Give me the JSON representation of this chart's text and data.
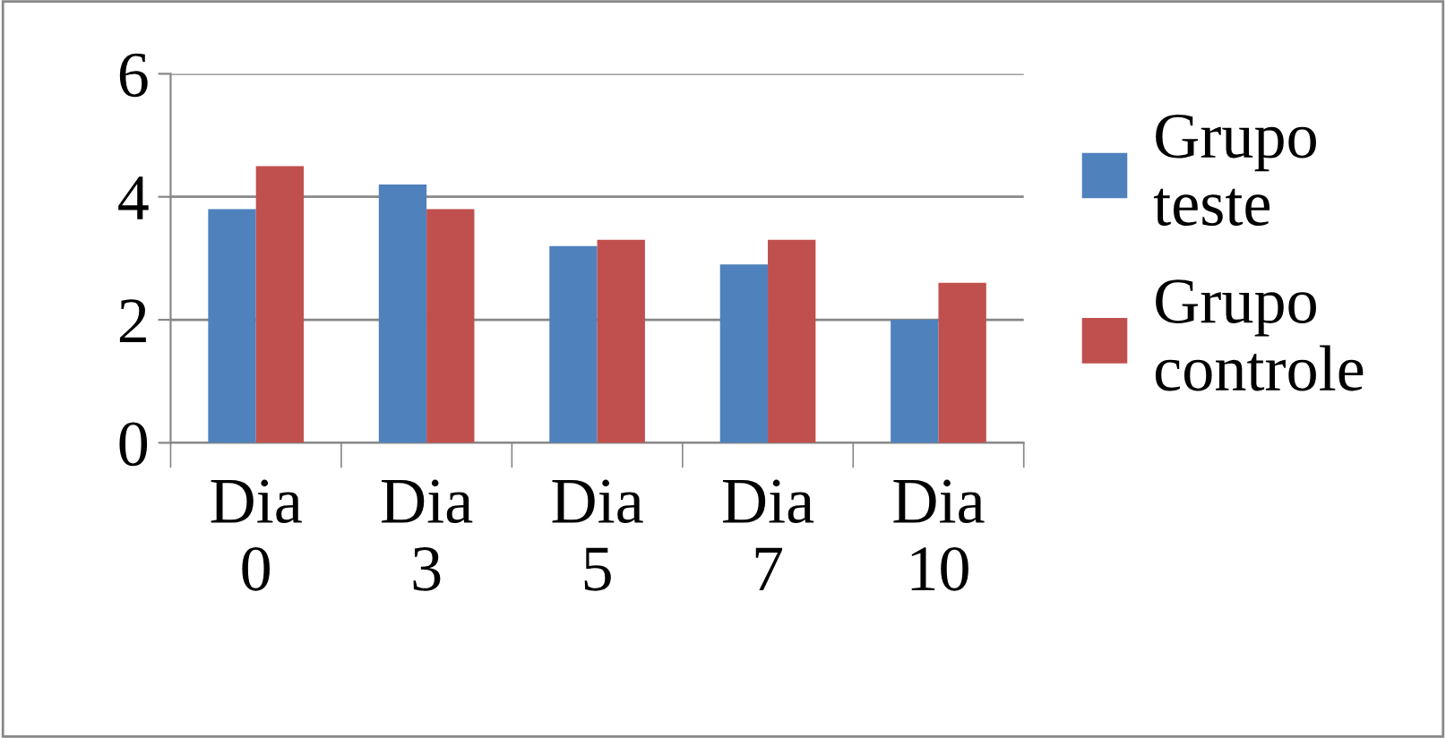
{
  "chart_data": {
    "type": "bar",
    "categories": [
      "Dia 0",
      "Dia 3",
      "Dia 5",
      "Dia 7",
      "Dia 10"
    ],
    "series": [
      {
        "name": "Grupo teste",
        "color": "#4f81bd",
        "values": [
          3.8,
          4.2,
          3.2,
          2.9,
          2.0
        ]
      },
      {
        "name": "Grupo controle",
        "color": "#c0504d",
        "values": [
          4.5,
          3.8,
          3.3,
          3.3,
          2.6
        ]
      }
    ],
    "ylim": [
      0,
      6
    ],
    "yticks": [
      0,
      2,
      4,
      6
    ],
    "grid": "y",
    "legend": "right"
  }
}
